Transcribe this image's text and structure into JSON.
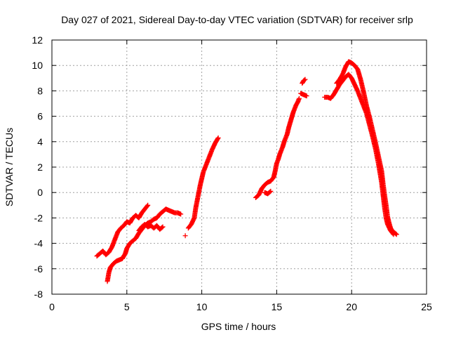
{
  "chart_data": {
    "type": "scatter",
    "title": "Day 027 of 2021, Sidereal Day-to-day VTEC variation (SDTVAR) for receiver srlp",
    "xlabel": "GPS time / hours",
    "ylabel": "SDTVAR / TECUs",
    "xlim": [
      0,
      25
    ],
    "ylim": [
      -8,
      12
    ],
    "xticks": [
      0,
      5,
      10,
      15,
      20,
      25
    ],
    "yticks": [
      -8,
      -6,
      -4,
      -2,
      0,
      2,
      4,
      6,
      8,
      10,
      12
    ],
    "grid": true,
    "marker": "plus",
    "color": "#ff0000",
    "series": [
      {
        "name": "SDTVAR",
        "segments": [
          [
            [
              3.0,
              -5.0
            ],
            [
              3.2,
              -4.8
            ],
            [
              3.4,
              -4.6
            ],
            [
              3.6,
              -4.9
            ],
            [
              3.8,
              -4.7
            ],
            [
              4.0,
              -4.3
            ],
            [
              4.2,
              -3.7
            ],
            [
              4.4,
              -3.1
            ],
            [
              4.6,
              -2.8
            ],
            [
              4.8,
              -2.6
            ],
            [
              5.0,
              -2.3
            ],
            [
              5.2,
              -2.4
            ],
            [
              5.4,
              -2.0
            ],
            [
              5.6,
              -1.8
            ],
            [
              5.8,
              -2.0
            ],
            [
              6.0,
              -1.6
            ],
            [
              6.2,
              -1.3
            ],
            [
              6.4,
              -1.0
            ]
          ],
          [
            [
              3.7,
              -7.0
            ],
            [
              3.8,
              -6.3
            ],
            [
              3.9,
              -5.9
            ],
            [
              4.1,
              -5.6
            ],
            [
              4.3,
              -5.4
            ],
            [
              4.5,
              -5.3
            ],
            [
              4.7,
              -5.2
            ],
            [
              4.9,
              -4.8
            ],
            [
              5.0,
              -4.4
            ],
            [
              5.2,
              -4.0
            ],
            [
              5.4,
              -3.8
            ],
            [
              5.6,
              -3.6
            ],
            [
              5.8,
              -3.2
            ],
            [
              6.0,
              -2.9
            ],
            [
              6.2,
              -2.6
            ],
            [
              6.4,
              -2.4
            ],
            [
              6.6,
              -2.3
            ],
            [
              6.8,
              -2.1
            ],
            [
              7.0,
              -2.0
            ],
            [
              7.2,
              -1.7
            ],
            [
              7.4,
              -1.5
            ],
            [
              7.6,
              -1.3
            ],
            [
              7.8,
              -1.4
            ],
            [
              8.0,
              -1.5
            ],
            [
              8.2,
              -1.6
            ],
            [
              8.4,
              -1.6
            ],
            [
              8.6,
              -1.7
            ]
          ],
          [
            [
              5.8,
              -3.0
            ],
            [
              6.0,
              -2.7
            ],
            [
              6.2,
              -2.5
            ],
            [
              6.4,
              -2.7
            ],
            [
              6.6,
              -2.6
            ],
            [
              6.8,
              -2.8
            ],
            [
              7.0,
              -2.6
            ],
            [
              7.2,
              -2.9
            ],
            [
              7.4,
              -2.7
            ]
          ],
          [
            [
              8.9,
              -3.4
            ]
          ],
          [
            [
              9.1,
              -2.8
            ],
            [
              9.3,
              -2.5
            ],
            [
              9.5,
              -2.0
            ],
            [
              9.6,
              -1.2
            ],
            [
              9.7,
              -0.6
            ],
            [
              9.8,
              0.0
            ],
            [
              9.9,
              0.6
            ],
            [
              10.0,
              1.1
            ],
            [
              10.1,
              1.6
            ],
            [
              10.3,
              2.2
            ],
            [
              10.5,
              2.8
            ],
            [
              10.7,
              3.4
            ],
            [
              10.9,
              3.9
            ],
            [
              11.1,
              4.3
            ]
          ],
          [
            [
              13.6,
              -0.4
            ],
            [
              13.8,
              -0.2
            ],
            [
              14.0,
              0.3
            ],
            [
              14.2,
              0.6
            ],
            [
              14.4,
              0.8
            ],
            [
              14.6,
              0.9
            ],
            [
              14.8,
              1.2
            ],
            [
              14.9,
              1.7
            ],
            [
              15.0,
              2.3
            ],
            [
              15.1,
              2.6
            ],
            [
              15.2,
              3.0
            ],
            [
              15.3,
              3.3
            ],
            [
              15.4,
              3.6
            ],
            [
              15.5,
              4.0
            ],
            [
              15.6,
              4.3
            ],
            [
              15.7,
              4.6
            ],
            [
              15.8,
              5.1
            ],
            [
              15.9,
              5.5
            ],
            [
              16.0,
              5.9
            ],
            [
              16.1,
              6.3
            ],
            [
              16.2,
              6.6
            ],
            [
              16.3,
              6.9
            ],
            [
              16.4,
              7.1
            ],
            [
              16.5,
              7.4
            ]
          ],
          [
            [
              14.2,
              0.0
            ],
            [
              14.4,
              -0.1
            ],
            [
              14.6,
              0.1
            ]
          ],
          [
            [
              16.6,
              7.8
            ],
            [
              16.8,
              7.7
            ],
            [
              17.0,
              7.6
            ]
          ],
          [
            [
              16.7,
              8.6
            ],
            [
              16.8,
              8.8
            ],
            [
              16.9,
              8.9
            ]
          ],
          [
            [
              18.2,
              7.5
            ],
            [
              18.4,
              7.5
            ],
            [
              18.6,
              7.4
            ],
            [
              18.8,
              7.7
            ],
            [
              19.0,
              8.1
            ],
            [
              19.2,
              8.5
            ],
            [
              19.4,
              8.8
            ],
            [
              19.6,
              9.1
            ],
            [
              19.8,
              9.3
            ],
            [
              20.0,
              9.0
            ],
            [
              20.2,
              8.5
            ],
            [
              20.4,
              8.0
            ],
            [
              20.6,
              7.4
            ],
            [
              20.8,
              6.8
            ],
            [
              21.0,
              6.2
            ],
            [
              21.2,
              5.3
            ],
            [
              21.4,
              4.4
            ],
            [
              21.6,
              3.4
            ],
            [
              21.8,
              2.2
            ],
            [
              22.0,
              0.8
            ],
            [
              22.1,
              -0.2
            ],
            [
              22.2,
              -1.2
            ],
            [
              22.3,
              -2.0
            ],
            [
              22.4,
              -2.5
            ],
            [
              22.6,
              -3.0
            ],
            [
              22.8,
              -3.3
            ]
          ],
          [
            [
              19.0,
              8.6
            ],
            [
              19.2,
              8.9
            ],
            [
              19.4,
              9.3
            ],
            [
              19.6,
              9.9
            ],
            [
              19.8,
              10.3
            ],
            [
              20.0,
              10.2
            ],
            [
              20.2,
              10.0
            ],
            [
              20.4,
              9.7
            ],
            [
              20.6,
              8.9
            ],
            [
              20.8,
              7.9
            ],
            [
              21.0,
              6.8
            ],
            [
              21.2,
              5.9
            ],
            [
              21.4,
              4.9
            ],
            [
              21.6,
              3.9
            ],
            [
              21.8,
              2.8
            ],
            [
              22.0,
              1.7
            ],
            [
              22.1,
              0.7
            ],
            [
              22.2,
              -0.2
            ],
            [
              22.3,
              -1.0
            ],
            [
              22.4,
              -1.9
            ],
            [
              22.5,
              -2.4
            ],
            [
              22.6,
              -2.8
            ],
            [
              22.7,
              -3.0
            ],
            [
              22.8,
              -3.1
            ],
            [
              23.0,
              -3.3
            ]
          ]
        ]
      }
    ]
  }
}
